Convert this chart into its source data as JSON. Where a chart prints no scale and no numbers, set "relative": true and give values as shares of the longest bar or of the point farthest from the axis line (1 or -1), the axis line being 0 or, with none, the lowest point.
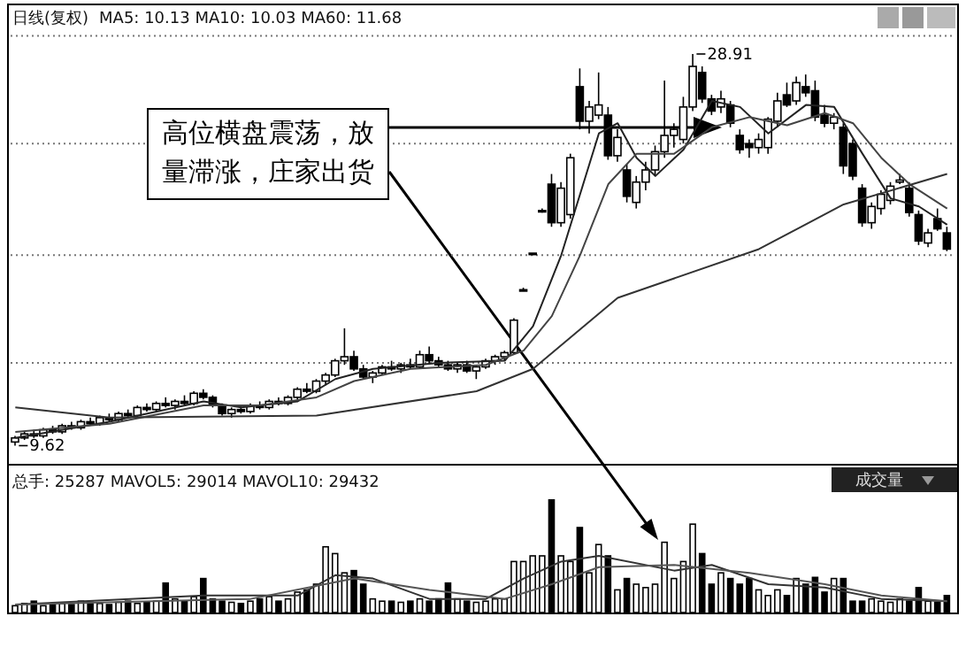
{
  "chart_data": [
    {
      "type": "candlestick",
      "color": "#000000",
      "categories": [
        null,
        null,
        null,
        null,
        null,
        null,
        null,
        null,
        null,
        null,
        null,
        null,
        null,
        null,
        null,
        null,
        null,
        null,
        null,
        null,
        null,
        null,
        null,
        null,
        null,
        null,
        null,
        null,
        null,
        null,
        null,
        null,
        null,
        null,
        null,
        null,
        null,
        null,
        null,
        null,
        null,
        null,
        null,
        null,
        null,
        null,
        null,
        null,
        null,
        null,
        null,
        null,
        null,
        null,
        null,
        null,
        null,
        null,
        null,
        null,
        null,
        null,
        null,
        null,
        null,
        null,
        null,
        null,
        null,
        null,
        null,
        null,
        null,
        null,
        null,
        null,
        null,
        null,
        null,
        null,
        null,
        null,
        null,
        null,
        null,
        null,
        null,
        null,
        null,
        null,
        null,
        null,
        null,
        null,
        null,
        null,
        null,
        null,
        null,
        null
      ],
      "ohlc": [
        [
          9.8,
          10.1,
          9.62,
          10.0
        ],
        [
          10.0,
          10.3,
          9.9,
          10.2
        ],
        [
          10.2,
          10.4,
          10.0,
          10.1
        ],
        [
          10.1,
          10.5,
          10.0,
          10.4
        ],
        [
          10.4,
          10.6,
          10.2,
          10.3
        ],
        [
          10.3,
          10.7,
          10.2,
          10.6
        ],
        [
          10.6,
          10.8,
          10.4,
          10.5
        ],
        [
          10.5,
          10.9,
          10.4,
          10.8
        ],
        [
          10.8,
          11.0,
          10.6,
          10.7
        ],
        [
          10.7,
          11.1,
          10.6,
          11.0
        ],
        [
          11.0,
          11.2,
          10.8,
          10.9
        ],
        [
          10.9,
          11.3,
          10.8,
          11.2
        ],
        [
          11.2,
          11.4,
          11.0,
          11.1
        ],
        [
          11.1,
          11.6,
          11.0,
          11.5
        ],
        [
          11.5,
          11.7,
          11.3,
          11.4
        ],
        [
          11.4,
          11.8,
          11.3,
          11.7
        ],
        [
          11.7,
          12.0,
          11.5,
          11.6
        ],
        [
          11.6,
          11.9,
          11.4,
          11.8
        ],
        [
          11.8,
          12.1,
          11.6,
          11.7
        ],
        [
          11.7,
          12.3,
          11.6,
          12.2
        ],
        [
          12.2,
          12.4,
          11.9,
          12.0
        ],
        [
          12.0,
          12.1,
          11.5,
          11.6
        ],
        [
          11.6,
          11.7,
          11.1,
          11.2
        ],
        [
          11.2,
          11.5,
          11.0,
          11.4
        ],
        [
          11.4,
          11.6,
          11.2,
          11.3
        ],
        [
          11.3,
          11.7,
          11.2,
          11.6
        ],
        [
          11.6,
          11.8,
          11.4,
          11.5
        ],
        [
          11.5,
          11.9,
          11.4,
          11.8
        ],
        [
          11.8,
          12.0,
          11.6,
          11.7
        ],
        [
          11.7,
          12.1,
          11.6,
          12.0
        ],
        [
          12.0,
          12.5,
          11.9,
          12.4
        ],
        [
          12.4,
          12.7,
          12.2,
          12.3
        ],
        [
          12.3,
          12.9,
          12.2,
          12.8
        ],
        [
          12.8,
          13.2,
          12.6,
          13.1
        ],
        [
          13.1,
          13.9,
          13.0,
          13.8
        ],
        [
          13.8,
          15.4,
          13.6,
          14.0
        ],
        [
          14.0,
          14.3,
          13.3,
          13.4
        ],
        [
          13.4,
          13.6,
          12.9,
          13.0
        ],
        [
          13.0,
          13.3,
          12.7,
          13.2
        ],
        [
          13.2,
          13.6,
          13.1,
          13.5
        ],
        [
          13.5,
          13.8,
          13.3,
          13.4
        ],
        [
          13.4,
          13.7,
          13.2,
          13.6
        ],
        [
          13.6,
          13.9,
          13.4,
          13.5
        ],
        [
          13.5,
          14.3,
          13.4,
          14.1
        ],
        [
          14.1,
          14.5,
          13.7,
          13.8
        ],
        [
          13.8,
          14.0,
          13.5,
          13.6
        ],
        [
          13.6,
          13.8,
          13.3,
          13.4
        ],
        [
          13.4,
          13.7,
          13.2,
          13.6
        ],
        [
          13.6,
          13.8,
          13.2,
          13.3
        ],
        [
          13.3,
          13.6,
          12.9,
          13.5
        ],
        [
          13.5,
          13.9,
          13.4,
          13.8
        ],
        [
          13.8,
          14.1,
          13.6,
          14.0
        ],
        [
          14.0,
          14.3,
          13.8,
          14.2
        ],
        [
          14.2,
          15.9,
          14.1,
          15.8
        ],
        [
          17.3,
          17.4,
          17.3,
          17.3
        ],
        [
          19.1,
          19.1,
          19.0,
          19.1
        ],
        [
          21.2,
          21.3,
          21.1,
          21.2
        ],
        [
          22.5,
          23.0,
          20.4,
          20.6
        ],
        [
          20.6,
          22.6,
          20.4,
          22.3
        ],
        [
          21.0,
          24.0,
          20.8,
          23.8
        ],
        [
          27.3,
          28.2,
          25.2,
          25.6
        ],
        [
          25.6,
          26.6,
          25.0,
          26.3
        ],
        [
          25.9,
          28.0,
          25.7,
          26.4
        ],
        [
          25.9,
          26.3,
          23.7,
          23.9
        ],
        [
          23.9,
          25.2,
          23.6,
          24.8
        ],
        [
          23.2,
          23.5,
          21.6,
          21.9
        ],
        [
          21.6,
          22.9,
          21.3,
          22.6
        ],
        [
          22.6,
          23.6,
          22.2,
          23.2
        ],
        [
          23.2,
          24.4,
          22.9,
          24.1
        ],
        [
          24.1,
          27.6,
          23.8,
          24.9
        ],
        [
          24.9,
          25.5,
          24.3,
          25.2
        ],
        [
          24.7,
          26.8,
          24.5,
          26.3
        ],
        [
          26.3,
          28.91,
          26.1,
          28.3
        ],
        [
          28.0,
          28.3,
          26.5,
          26.7
        ],
        [
          26.7,
          26.9,
          25.9,
          26.1
        ],
        [
          26.3,
          27.1,
          26.0,
          26.7
        ],
        [
          26.4,
          26.6,
          25.3,
          25.5
        ],
        [
          24.9,
          25.2,
          24.0,
          24.2
        ],
        [
          24.5,
          24.7,
          23.8,
          24.3
        ],
        [
          24.3,
          25.0,
          24.0,
          24.7
        ],
        [
          24.3,
          25.8,
          24.0,
          25.7
        ],
        [
          25.6,
          27.0,
          25.3,
          26.6
        ],
        [
          26.9,
          27.5,
          26.3,
          26.4
        ],
        [
          26.6,
          27.8,
          26.4,
          27.5
        ],
        [
          27.3,
          27.9,
          26.8,
          27.0
        ],
        [
          27.1,
          27.6,
          25.6,
          25.8
        ],
        [
          25.9,
          26.4,
          25.3,
          25.5
        ],
        [
          25.5,
          26.0,
          25.2,
          25.8
        ],
        [
          25.3,
          25.5,
          23.0,
          23.4
        ],
        [
          24.5,
          24.7,
          22.7,
          22.9
        ],
        [
          22.3,
          22.5,
          20.4,
          20.6
        ],
        [
          20.6,
          21.6,
          20.3,
          21.4
        ],
        [
          21.3,
          22.2,
          21.0,
          22.0
        ],
        [
          21.7,
          22.6,
          21.5,
          22.4
        ],
        [
          22.6,
          23.0,
          22.5,
          22.7
        ],
        [
          22.3,
          22.6,
          20.9,
          21.1
        ],
        [
          21.0,
          21.2,
          19.5,
          19.7
        ],
        [
          19.6,
          20.3,
          19.4,
          20.1
        ],
        [
          20.8,
          21.3,
          20.2,
          20.3
        ],
        [
          20.1,
          20.4,
          19.2,
          19.3
        ]
      ],
      "series": [
        {
          "type": "line",
          "color": "#222222",
          "values": [
            10.0,
            null,
            null,
            null,
            null,
            null,
            null,
            null,
            null,
            null,
            10.8,
            null,
            null,
            null,
            null,
            null,
            null,
            null,
            null,
            null,
            11.8,
            null,
            null,
            null,
            11.5,
            null,
            null,
            null,
            null,
            null,
            11.8,
            null,
            null,
            null,
            12.9,
            null,
            null,
            null,
            13.4,
            null,
            null,
            null,
            null,
            null,
            null,
            13.7,
            null,
            null,
            null,
            null,
            null,
            null,
            13.8,
            null,
            null,
            15.5,
            null,
            null,
            19.0,
            null,
            22.0,
            null,
            25.0,
            null,
            25.5,
            null,
            23.8,
            null,
            22.9,
            null,
            null,
            24.2,
            null,
            null,
            26.6,
            null,
            null,
            26.3,
            null,
            null,
            25.0,
            null,
            null,
            null,
            26.4,
            null,
            null,
            26.3,
            null,
            null,
            24.0,
            null,
            null,
            21.8,
            null,
            null,
            21.4,
            null,
            null,
            20.5
          ]
        },
        {
          "type": "line",
          "color": "#444444",
          "values": [
            10.3,
            null,
            null,
            null,
            null,
            null,
            null,
            null,
            null,
            null,
            10.7,
            null,
            null,
            null,
            null,
            null,
            null,
            null,
            null,
            null,
            11.6,
            null,
            null,
            null,
            null,
            null,
            11.6,
            null,
            null,
            null,
            null,
            null,
            12.0,
            null,
            null,
            null,
            12.8,
            null,
            null,
            null,
            null,
            null,
            13.4,
            null,
            null,
            null,
            null,
            null,
            null,
            null,
            13.6,
            null,
            null,
            null,
            14.3,
            null,
            null,
            16.0,
            null,
            null,
            19.0,
            null,
            null,
            22.5,
            null,
            null,
            24.0,
            null,
            null,
            null,
            24.0,
            null,
            null,
            null,
            25.3,
            null,
            null,
            null,
            25.8,
            null,
            null,
            null,
            25.4,
            null,
            null,
            null,
            26.0,
            null,
            null,
            25.5,
            null,
            null,
            23.8,
            null,
            null,
            22.5,
            null,
            null,
            null,
            21.3
          ]
        },
        {
          "type": "line",
          "color": "#333333",
          "values": [
            11.5,
            null,
            null,
            null,
            null,
            null,
            null,
            null,
            null,
            null,
            11.0,
            null,
            null,
            null,
            null,
            null,
            null,
            null,
            null,
            null,
            null,
            null,
            null,
            null,
            null,
            null,
            null,
            null,
            null,
            null,
            null,
            null,
            11.1,
            null,
            null,
            null,
            null,
            null,
            null,
            null,
            null,
            null,
            null,
            null,
            null,
            null,
            null,
            null,
            null,
            12.3,
            null,
            null,
            null,
            null,
            null,
            13.4,
            null,
            null,
            null,
            null,
            null,
            null,
            null,
            null,
            16.9,
            null,
            null,
            null,
            null,
            null,
            null,
            null,
            null,
            null,
            null,
            null,
            null,
            null,
            null,
            19.3,
            null,
            null,
            null,
            null,
            null,
            null,
            null,
            null,
            21.5,
            null,
            null,
            null,
            null,
            null,
            null,
            null,
            null,
            null,
            null,
            23.0
          ]
        }
      ],
      "ylim": [
        8.9,
        30.0
      ],
      "yticks": [
        {
          "value": 13.7,
          "label": null
        },
        {
          "value": 19.0,
          "label": null
        },
        {
          "value": 24.5,
          "label": null
        },
        {
          "value": 29.8,
          "label": null
        }
      ],
      "grid": "y",
      "tick_labels": false,
      "annotations": [
        "日线(复权)",
        "MA5: 10.13 MA10: 10.03 MA60: 11.68",
        "高位横盘震荡，放量滞涨，庄家出货",
        "28.91",
        "9.62"
      ]
    },
    {
      "type": "bar",
      "relative": true,
      "tick_labels": false,
      "categories": [
        null,
        null,
        null,
        null,
        null,
        null,
        null,
        null,
        null,
        null,
        null,
        null,
        null,
        null,
        null,
        null,
        null,
        null,
        null,
        null,
        null,
        null,
        null,
        null,
        null,
        null,
        null,
        null,
        null,
        null,
        null,
        null,
        null,
        null,
        null,
        null,
        null,
        null,
        null,
        null,
        null,
        null,
        null,
        null,
        null,
        null,
        null,
        null,
        null,
        null,
        null,
        null,
        null,
        null,
        null,
        null,
        null,
        null,
        null,
        null,
        null,
        null,
        null,
        null,
        null,
        null,
        null,
        null,
        null,
        null,
        null,
        null,
        null,
        null,
        null,
        null,
        null,
        null,
        null,
        null,
        null,
        null,
        null,
        null,
        null,
        null,
        null,
        null,
        null,
        null,
        null,
        null,
        null,
        null,
        null,
        null,
        null,
        null,
        null,
        null
      ],
      "series": [
        {
          "type": "bar",
          "color": "#000000",
          "values": [
            0.06,
            0.08,
            0.1,
            0.06,
            0.07,
            0.08,
            0.07,
            0.1,
            0.09,
            0.08,
            0.07,
            0.09,
            0.1,
            0.08,
            0.09,
            0.1,
            0.26,
            0.12,
            0.1,
            0.14,
            0.3,
            0.12,
            0.1,
            0.09,
            0.08,
            0.1,
            0.12,
            0.14,
            0.1,
            0.12,
            0.18,
            0.2,
            0.25,
            0.58,
            0.52,
            0.35,
            0.37,
            0.25,
            0.12,
            0.1,
            0.1,
            0.09,
            0.1,
            0.12,
            0.1,
            0.12,
            0.26,
            0.12,
            0.1,
            0.09,
            0.1,
            0.12,
            0.12,
            0.45,
            0.45,
            0.5,
            0.5,
            1.0,
            0.5,
            0.45,
            0.75,
            0.35,
            0.6,
            0.5,
            0.2,
            0.3,
            0.25,
            0.22,
            0.25,
            0.62,
            0.3,
            0.45,
            0.78,
            0.52,
            0.25,
            0.35,
            0.3,
            0.25,
            0.3,
            0.2,
            0.15,
            0.2,
            0.15,
            0.3,
            0.25,
            0.31,
            0.18,
            0.3,
            0.3,
            0.1,
            0.1,
            0.12,
            0.1,
            0.09,
            0.12,
            0.1,
            0.22,
            0.1,
            0.09,
            0.15
          ]
        },
        {
          "type": "line",
          "color": "#333333",
          "values": [
            0.07,
            null,
            null,
            null,
            null,
            null,
            null,
            null,
            null,
            null,
            null,
            null,
            null,
            null,
            null,
            null,
            null,
            null,
            null,
            null,
            0.15,
            null,
            null,
            null,
            null,
            null,
            null,
            null,
            null,
            null,
            0.15,
            null,
            null,
            null,
            0.33,
            null,
            null,
            null,
            0.3,
            null,
            null,
            null,
            null,
            null,
            0.12,
            null,
            null,
            null,
            null,
            null,
            0.12,
            null,
            null,
            null,
            0.3,
            null,
            null,
            null,
            0.45,
            null,
            null,
            null,
            0.5,
            null,
            null,
            null,
            null,
            null,
            null,
            null,
            0.37,
            null,
            null,
            null,
            0.42,
            null,
            null,
            null,
            null,
            null,
            0.25,
            null,
            null,
            null,
            null,
            null,
            0.22,
            null,
            null,
            null,
            null,
            null,
            0.12,
            null,
            null,
            null,
            null,
            null,
            null,
            0.1
          ]
        },
        {
          "type": "line",
          "color": "#555555",
          "values": [
            0.07,
            null,
            null,
            null,
            null,
            null,
            null,
            null,
            null,
            null,
            null,
            null,
            null,
            null,
            null,
            null,
            null,
            null,
            null,
            null,
            null,
            null,
            null,
            null,
            null,
            0.12,
            null,
            null,
            null,
            null,
            null,
            null,
            null,
            null,
            null,
            null,
            0.3,
            null,
            null,
            null,
            null,
            null,
            null,
            null,
            0.2,
            null,
            null,
            null,
            null,
            null,
            null,
            null,
            0.12,
            null,
            null,
            null,
            null,
            0.25,
            null,
            null,
            null,
            null,
            0.4,
            null,
            null,
            null,
            null,
            null,
            null,
            null,
            0.42,
            null,
            null,
            null,
            null,
            null,
            null,
            null,
            0.35,
            null,
            null,
            null,
            null,
            null,
            null,
            null,
            0.25,
            null,
            null,
            null,
            null,
            null,
            0.15,
            null,
            null,
            null,
            null,
            null,
            null,
            0.1
          ]
        }
      ],
      "annotations": [
        "总手: 25287 MAVOL5: 29014 MAVOL10: 29432",
        "成交量"
      ]
    }
  ]
}
